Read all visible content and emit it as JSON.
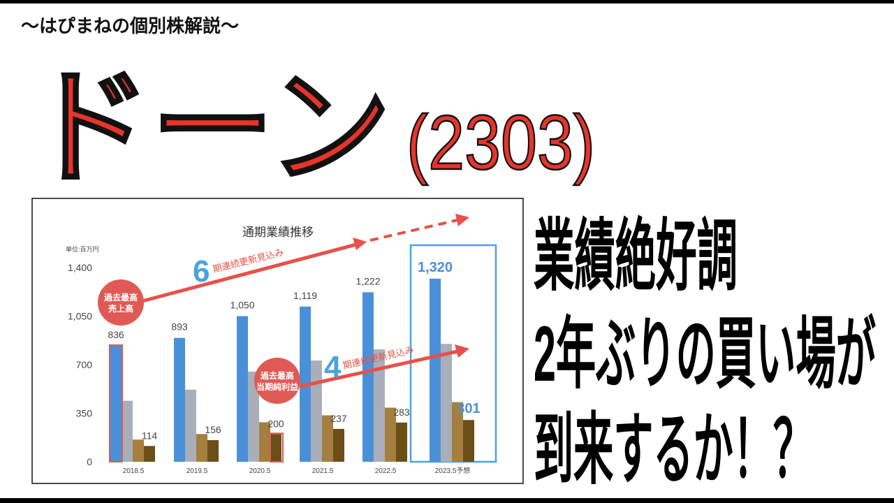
{
  "header": {
    "series_name": "〜はぴまねの個別株解説〜",
    "title": "ドーン",
    "code": "(2303)"
  },
  "headline": [
    "業績絶好調",
    "2年ぶりの買い場が",
    "到来するか！？"
  ],
  "chart_data": {
    "type": "bar",
    "title": "通期業績推移",
    "unit_label": "単位:百万円",
    "categories": [
      "2018.5",
      "2019.5",
      "2020.5",
      "2021.5",
      "2022.5",
      "2023.5予想"
    ],
    "series": [
      {
        "color": "#4a90d9",
        "values": [
          836,
          893,
          1050,
          1119,
          1222,
          1320
        ],
        "value_labels": [
          "836",
          "893",
          "1,050",
          "1,119",
          "1,222",
          "1,320"
        ]
      },
      {
        "color": "#a9afb9",
        "values": [
          440,
          520,
          650,
          730,
          810,
          850
        ]
      },
      {
        "color": "#a57f3f",
        "values": [
          160,
          200,
          285,
          335,
          390,
          430
        ]
      },
      {
        "color": "#6b4f17",
        "values": [
          114,
          156,
          200,
          237,
          283,
          301
        ]
      }
    ],
    "ylim": [
      0,
      1400
    ],
    "yticks": [
      0,
      350,
      700,
      {
        "value": 1050,
        "label": "1,050"
      },
      {
        "value": 1400,
        "label": "1,400"
      }
    ],
    "sales_badge": [
      "過去最高",
      "売上高"
    ],
    "profit_badge": [
      "過去最高",
      "当期純利益"
    ],
    "sales_streak": {
      "count": 6,
      "text": "期連続更新見込み"
    },
    "profit_streak": {
      "count": 4,
      "text": "期連続更新見込み"
    }
  }
}
